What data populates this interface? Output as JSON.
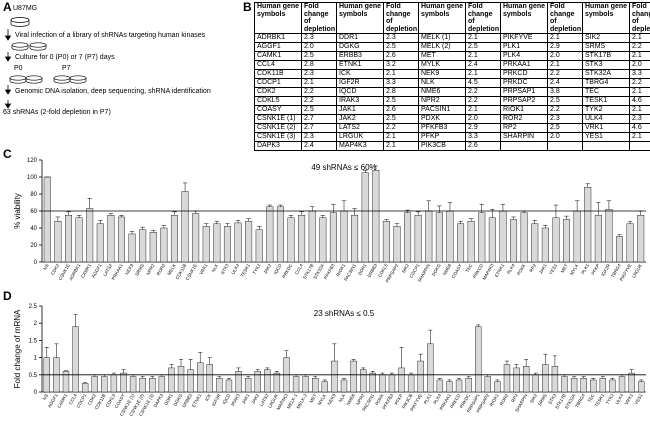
{
  "panel_labels": [
    "A",
    "B",
    "C",
    "D"
  ],
  "workflow": {
    "cell_line": "U87MG",
    "steps": [
      "Viral infection of a library of shRNAs targeting human kinases",
      "Culture for 0 (P0) or 7 (P7) days",
      "Genomic DNA isolation, deep sequencing, shRNA identification",
      "63 shRNAs (2-fold depletion in P7)"
    ],
    "conditions": [
      "P0",
      "P7"
    ]
  },
  "table": {
    "header": [
      "Human gene symbols",
      "Fold change of depletion"
    ],
    "groups": [
      {
        "rows": [
          [
            "ADRBK1",
            "2.3"
          ],
          [
            "AGGF1",
            "2.0"
          ],
          [
            "CAMK1",
            "2.5"
          ],
          [
            "CCL4",
            "2.8"
          ],
          [
            "CDK11B",
            "2.3"
          ],
          [
            "CDCP1",
            "2.1"
          ],
          [
            "CDK2",
            "2.2"
          ],
          [
            "CDKL5",
            "2.2"
          ],
          [
            "COASY",
            "2.5"
          ],
          [
            "CSNK1E (1)",
            "2.7"
          ],
          [
            "CSNK1E (2)",
            "2.7"
          ],
          [
            "CSNK1E (3)",
            "2.3"
          ],
          [
            "DAPK3",
            "2.4"
          ]
        ]
      },
      {
        "rows": [
          [
            "DDR1",
            "2.3"
          ],
          [
            "DGKG",
            "2.5"
          ],
          [
            "ERBB3",
            "2.6"
          ],
          [
            "ETNK1",
            "3.2"
          ],
          [
            "ICK",
            "2.1"
          ],
          [
            "IGF2R",
            "3.3"
          ],
          [
            "IQCD",
            "2.8"
          ],
          [
            "IRAK3",
            "2.5"
          ],
          [
            "JAK1",
            "2.6"
          ],
          [
            "JAK2",
            "2.5"
          ],
          [
            "LATS2",
            "2.2"
          ],
          [
            "LRGUK",
            "2.1"
          ],
          [
            "MAP4K3",
            "2.1"
          ]
        ]
      },
      {
        "rows": [
          [
            "MELK (1)",
            "2.1"
          ],
          [
            "MELK (2)",
            "2.5"
          ],
          [
            "MET",
            "2.1"
          ],
          [
            "MYLK",
            "2.4"
          ],
          [
            "NEK9",
            "2.1"
          ],
          [
            "NLK",
            "4.5"
          ],
          [
            "NME6",
            "2.2"
          ],
          [
            "NPR2",
            "2.2"
          ],
          [
            "PACSIN1",
            "2.1"
          ],
          [
            "PDXK",
            "2.0"
          ],
          [
            "PFKFB3",
            "2.9"
          ],
          [
            "PFKP",
            "3.3"
          ],
          [
            "PIK3CB",
            "2.6"
          ]
        ]
      },
      {
        "rows": [
          [
            "PIKFYVE",
            "2.1"
          ],
          [
            "PLK1",
            "2.9"
          ],
          [
            "PLK4",
            "2.0"
          ],
          [
            "PRKAA1",
            "2.1"
          ],
          [
            "PRKCD",
            "2.2"
          ],
          [
            "PRKDC",
            "2.4"
          ],
          [
            "PRPSAP1",
            "3.8"
          ],
          [
            "PRPSAP2",
            "2.5"
          ],
          [
            "RIOK1",
            "2.2"
          ],
          [
            "ROR2",
            "2.3"
          ],
          [
            "RP2",
            "2.5"
          ],
          [
            "SHARPIN",
            "2.0"
          ]
        ]
      },
      {
        "rows": [
          [
            "SIK2",
            "2.1"
          ],
          [
            "SRMS",
            "2.2"
          ],
          [
            "STK17B",
            "2.1"
          ],
          [
            "STK3",
            "2.0"
          ],
          [
            "STK32A",
            "3.3"
          ],
          [
            "TBRG4",
            "2.2"
          ],
          [
            "TEC",
            "2.1"
          ],
          [
            "TESK1",
            "4.6"
          ],
          [
            "TYK2",
            "2.1"
          ],
          [
            "ULK4",
            "2.3"
          ],
          [
            "VRK1",
            "4.6"
          ],
          [
            "YES1",
            "2.1"
          ]
        ]
      }
    ]
  },
  "chart_data": [
    {
      "type": "bar",
      "title": "49 shRNAs ≤ 60%",
      "ylabel": "% viability",
      "color": "#d9d9d9",
      "ylim": [
        0,
        120
      ],
      "yticks": [
        0,
        20,
        40,
        60,
        80,
        100,
        120
      ],
      "threshold": 60,
      "categories": [
        "NS",
        "CDK2",
        "CSNK1E",
        "ADRBK1",
        "CAMK1",
        "AGGF1",
        "LATS2",
        "PRKAA1",
        "NEK9",
        "SRMS",
        "NPR2",
        "ROR2",
        "MELK",
        "CDK11B",
        "CSNK1E",
        "VRK1",
        "NLK",
        "STK3",
        "ULK4",
        "TESK1",
        "TYK2",
        "JAK2",
        "IQCD",
        "PRKDC",
        "CCL4",
        "STK17B",
        "STK32A",
        "PFKFB3",
        "RIOK1",
        "PACSIN1",
        "DDR1",
        "ERBB3",
        "CDKL5",
        "PRPSAP2",
        "SIK2",
        "CDCP1",
        "SHARPIN",
        "DGKG",
        "NME6",
        "COASY",
        "TEC",
        "PRKCD",
        "MAP4K3",
        "ETNK1",
        "PLK4",
        "PDXK",
        "RP2",
        "JAK1",
        "YES1",
        "MET",
        "MYLK",
        "PLK1",
        "PFKP",
        "IGF2R",
        "TBRG4",
        "PIKFYVE",
        "LRGUK"
      ],
      "values": [
        100,
        48,
        55,
        52,
        63,
        45,
        55,
        53,
        33,
        38,
        35,
        40,
        55,
        83,
        57,
        42,
        45,
        42,
        46,
        48,
        38,
        65,
        65,
        52,
        55,
        60,
        52,
        58,
        60,
        55,
        105,
        108,
        48,
        42,
        58,
        55,
        60,
        58,
        60,
        45,
        48,
        58,
        52,
        60,
        50,
        58,
        45,
        40,
        52,
        50,
        60,
        88,
        55,
        62,
        30,
        45,
        55
      ],
      "errors": [
        0,
        5,
        4,
        3,
        12,
        4,
        2,
        2,
        3,
        3,
        2,
        3,
        4,
        10,
        3,
        3,
        3,
        3,
        3,
        3,
        4,
        2,
        2,
        3,
        4,
        5,
        3,
        10,
        12,
        8,
        3,
        5,
        2,
        3,
        3,
        4,
        12,
        8,
        10,
        3,
        3,
        10,
        10,
        8,
        3,
        2,
        4,
        3,
        15,
        4,
        12,
        4,
        15,
        10,
        2,
        3,
        5
      ]
    },
    {
      "type": "bar",
      "title": "23 shRNAs ≤ 0.5",
      "ylabel": "Fold change of mRNA",
      "color": "#d9d9d9",
      "ylim": [
        0,
        2.5
      ],
      "yticks": [
        0,
        0.5,
        1,
        1.5,
        2,
        2.5
      ],
      "threshold": 0.5,
      "categories": [
        "NS",
        "AGGF1",
        "CAMK1",
        "CCL4",
        "CDCP1",
        "CDK2",
        "CDK11B",
        "CDKL5",
        "COASY",
        "CSNK1E (1)",
        "CSNK1E (2)",
        "CSNK1E (3)",
        "DAPK3",
        "DDR1",
        "DGKG",
        "ERBB3",
        "ETNK1",
        "ICK",
        "IGF2R",
        "IQCD",
        "IRAK3",
        "JAK1",
        "JAK2",
        "LATS2",
        "LRGUK",
        "MAP4K3",
        "MELK-1",
        "MELK-2",
        "MET",
        "MYLK",
        "NEK9",
        "NLK",
        "NME6",
        "NPR2",
        "PACSIN1",
        "PDXK",
        "PFKFB3",
        "PFKP",
        "PIK3CB",
        "PIKFYVE",
        "PLK1",
        "PLK4",
        "PRKAA1",
        "PRKCD",
        "PRKDC",
        "PRPSAP1",
        "PRPSAP2",
        "RIOK1",
        "ROR2",
        "RP2",
        "SHARPIN",
        "SIK2",
        "SRMS",
        "STK3",
        "STK17B",
        "STK32A",
        "TBRG4",
        "TEC",
        "TESK1",
        "TYK2",
        "ULK4",
        "VRK1",
        "YES1"
      ],
      "values": [
        1.0,
        1.0,
        0.6,
        1.9,
        0.25,
        0.45,
        0.45,
        0.5,
        0.55,
        0.45,
        0.4,
        0.4,
        0.45,
        0.7,
        0.75,
        0.65,
        0.85,
        0.8,
        0.4,
        0.35,
        0.6,
        0.4,
        0.6,
        0.65,
        0.55,
        1.0,
        0.45,
        0.45,
        0.4,
        0.3,
        0.9,
        0.35,
        0.9,
        0.65,
        0.55,
        0.5,
        0.5,
        0.7,
        0.5,
        0.9,
        1.4,
        0.35,
        0.3,
        0.35,
        0.4,
        1.9,
        0.45,
        0.3,
        0.8,
        0.7,
        0.75,
        0.5,
        0.8,
        0.75,
        0.45,
        0.4,
        0.4,
        0.35,
        0.4,
        0.35,
        0.45,
        0.55,
        0.3
      ],
      "errors": [
        0.3,
        0.4,
        0.02,
        0.35,
        0.02,
        0.05,
        0.05,
        0.05,
        0.1,
        0.05,
        0.05,
        0.05,
        0.05,
        0.1,
        0.2,
        0.3,
        0.3,
        0.2,
        0.05,
        0.05,
        0.1,
        0.05,
        0.05,
        0.05,
        0.05,
        0.2,
        0.05,
        0.05,
        0.05,
        0.05,
        0.5,
        0.05,
        0.05,
        0.05,
        0.05,
        0.05,
        0.05,
        0.6,
        0.05,
        0.2,
        0.4,
        0.05,
        0.05,
        0.05,
        0.05,
        0.05,
        0.05,
        0.05,
        0.1,
        0.1,
        0.2,
        0.05,
        0.3,
        0.3,
        0.05,
        0.05,
        0.05,
        0.05,
        0.05,
        0.05,
        0.05,
        0.1,
        0.05
      ]
    }
  ]
}
